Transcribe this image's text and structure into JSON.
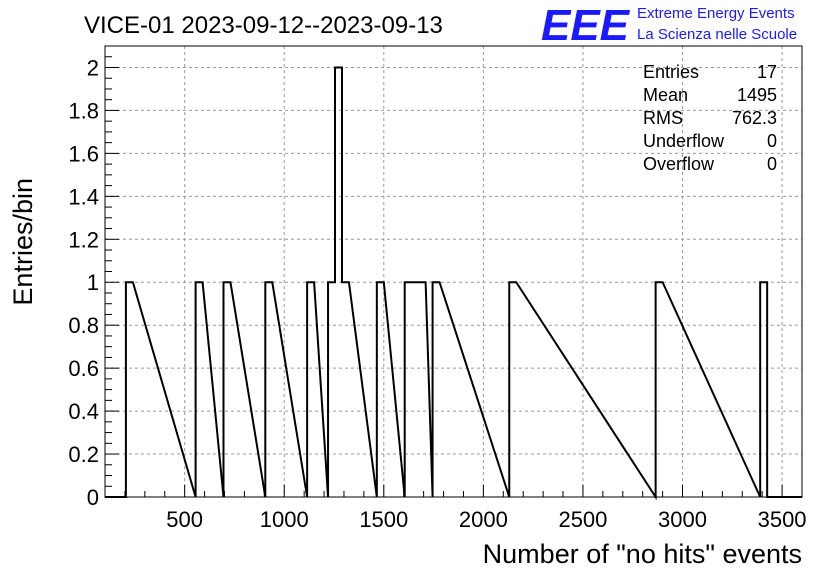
{
  "chart_data": {
    "type": "bar",
    "title": "VICE-01 2023-09-12--2023-09-13",
    "xlabel": "Number of \"no hits\" events",
    "ylabel": "Entries/bin",
    "xlim": [
      100,
      3600
    ],
    "ylim": [
      0,
      2.1
    ],
    "grid": true,
    "bin_width": 35,
    "x_ticks": [
      500,
      1000,
      1500,
      2000,
      2500,
      3000,
      3500
    ],
    "y_ticks": [
      0,
      0.2,
      0.4,
      0.6,
      0.8,
      1,
      1.2,
      1.4,
      1.6,
      1.8,
      2
    ],
    "bins": [
      {
        "low": 205,
        "count": 1
      },
      {
        "low": 555,
        "count": 1
      },
      {
        "low": 695,
        "count": 1
      },
      {
        "low": 905,
        "count": 1
      },
      {
        "low": 1115,
        "count": 1
      },
      {
        "low": 1220,
        "count": 1
      },
      {
        "low": 1255,
        "count": 2
      },
      {
        "low": 1290,
        "count": 1
      },
      {
        "low": 1465,
        "count": 1
      },
      {
        "low": 1605,
        "count": 1
      },
      {
        "low": 1640,
        "count": 1
      },
      {
        "low": 1675,
        "count": 1
      },
      {
        "low": 1745,
        "count": 1
      },
      {
        "low": 2130,
        "count": 1
      },
      {
        "low": 2865,
        "count": 1
      },
      {
        "low": 3390,
        "count": 1
      }
    ],
    "stats": [
      {
        "label": "Entries",
        "value": "17"
      },
      {
        "label": "Mean",
        "value": "1495"
      },
      {
        "label": "RMS",
        "value": "762.3"
      },
      {
        "label": "Underflow",
        "value": "0"
      },
      {
        "label": "Overflow",
        "value": "0"
      }
    ],
    "legend_position": "top-right"
  },
  "logo": {
    "mark": "EEE",
    "line1": "Extreme Energy Events",
    "line2": "La Scienza nelle Scuole",
    "color": "#1a1aff"
  },
  "colors": {
    "line": "#000000",
    "grid": "#9a9a9a"
  }
}
